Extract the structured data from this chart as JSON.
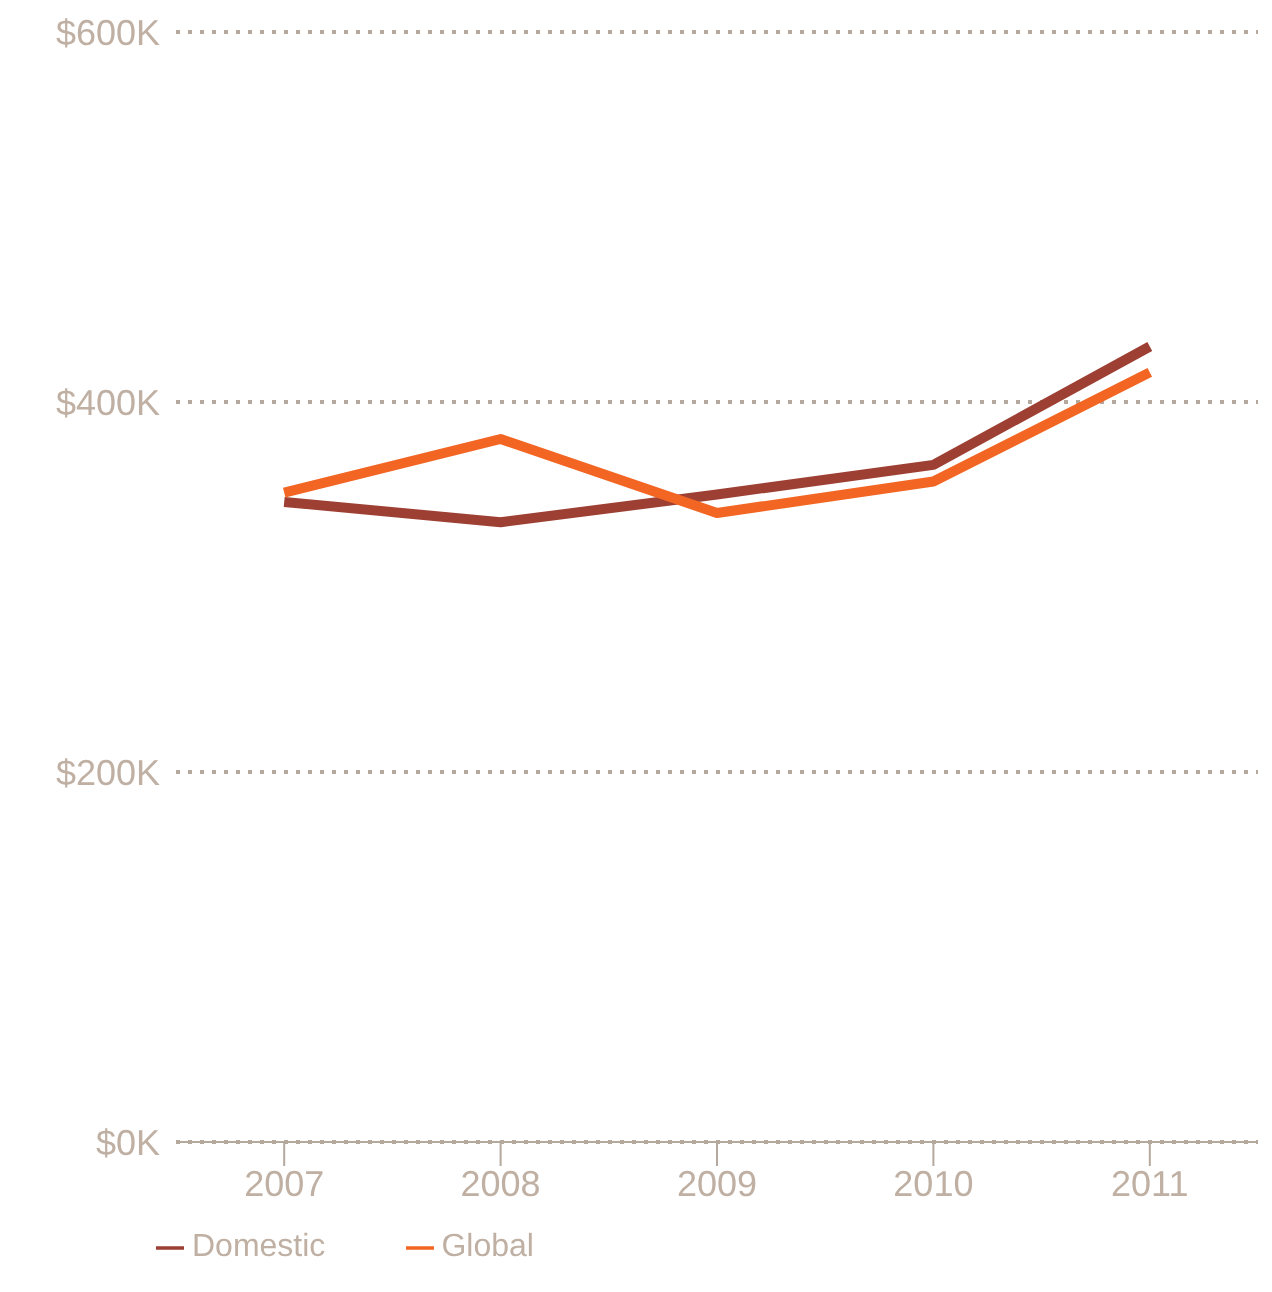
{
  "chart_data": {
    "type": "line",
    "categories": [
      "2007",
      "2008",
      "2009",
      "2010",
      "2011"
    ],
    "series": [
      {
        "name": "Domestic",
        "color": "#9e3f33",
        "values": [
          346,
          335,
          350,
          366,
          430
        ]
      },
      {
        "name": "Global",
        "color": "#f26522",
        "values": [
          351,
          380,
          340,
          357,
          416
        ]
      }
    ],
    "ylim": [
      0,
      600
    ],
    "yticks": [
      {
        "value": 0,
        "label": "$0K"
      },
      {
        "value": 200,
        "label": "$200K"
      },
      {
        "value": 400,
        "label": "$400K"
      },
      {
        "value": 600,
        "label": "$600K"
      }
    ],
    "grid": "y",
    "legend": "bottom left",
    "marker": "none",
    "line_style": "solid"
  }
}
